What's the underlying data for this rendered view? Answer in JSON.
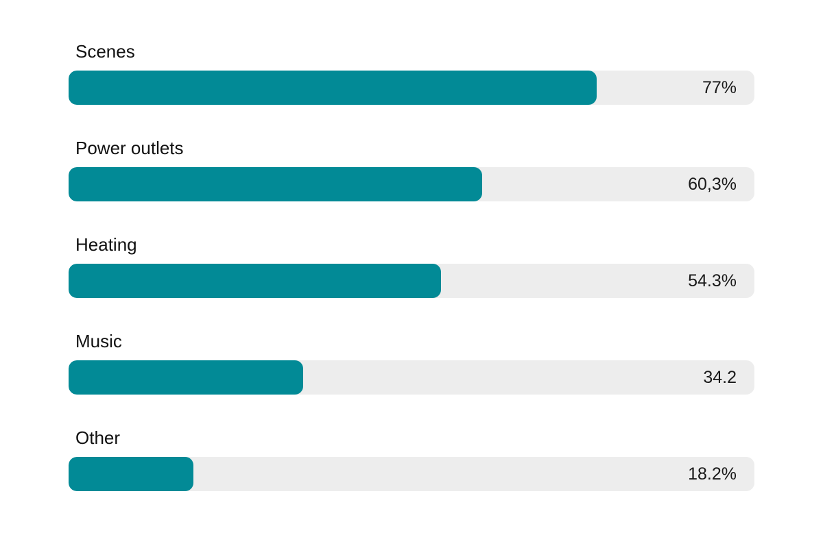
{
  "chart_data": {
    "type": "bar",
    "orientation": "horizontal",
    "categories": [
      "Scenes",
      "Power outlets",
      "Heating",
      "Music",
      "Other"
    ],
    "values": [
      77,
      60.3,
      54.3,
      34.2,
      18.2
    ],
    "value_labels": [
      "77%",
      "60,3%",
      "54.3%",
      "34.2",
      "18.2%"
    ],
    "xlim": [
      0,
      100
    ],
    "grid": false,
    "legend": "none",
    "colors": {
      "bar": "#028A96",
      "track": "#EDEDED"
    }
  }
}
